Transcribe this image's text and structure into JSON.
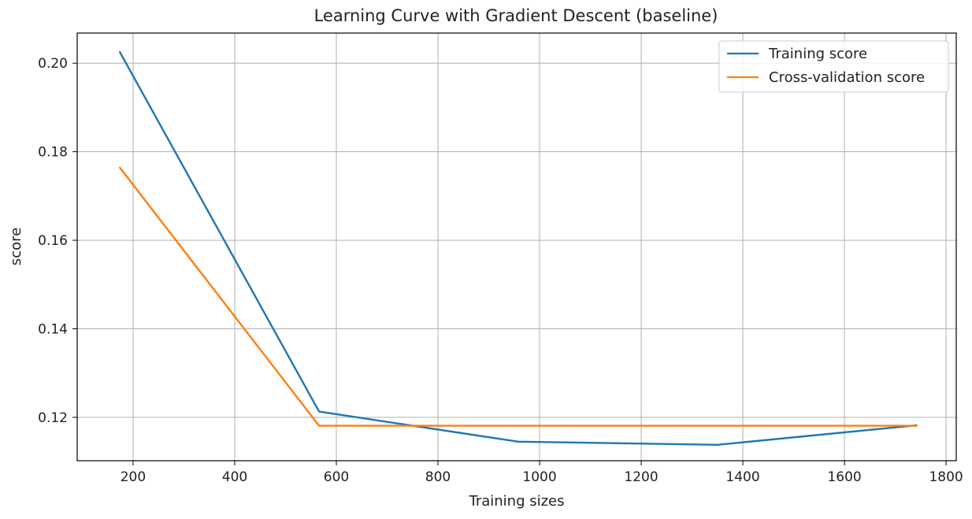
{
  "chart_data": {
    "type": "line",
    "title": "Learning Curve with Gradient Descent (baseline)",
    "xlabel": "Training sizes",
    "ylabel": "score",
    "xlim": [
      90,
      1820
    ],
    "ylim": [
      0.1102,
      0.2068
    ],
    "xticks": [
      200,
      400,
      600,
      800,
      1000,
      1200,
      1400,
      1600,
      1800
    ],
    "yticks": [
      0.12,
      0.14,
      0.16,
      0.18,
      0.2
    ],
    "ytick_labels": [
      "0.12",
      "0.14",
      "0.16",
      "0.18",
      "0.20"
    ],
    "grid": true,
    "legend_position": "top-right",
    "series": [
      {
        "name": "Training score",
        "color": "#1f77b4",
        "x": [
          174,
          566,
          958,
          1350,
          1742
        ],
        "y": [
          0.2025,
          0.1213,
          0.1145,
          0.1138,
          0.1182
        ]
      },
      {
        "name": "Cross-validation score",
        "color": "#ff7f0e",
        "x": [
          174,
          566,
          958,
          1350,
          1742
        ],
        "y": [
          0.1764,
          0.1181,
          0.1181,
          0.1181,
          0.1181
        ]
      }
    ]
  }
}
